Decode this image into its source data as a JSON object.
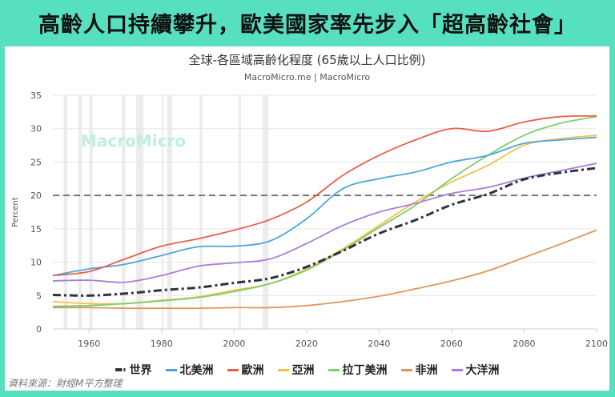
{
  "banner": "高齡人口持續攀升，歐美國家率先步入「超高齡社會」",
  "source": "資料來源：財經M平方整理",
  "watermark": "MacroMicro",
  "chart_data": {
    "type": "line",
    "title": "全球-各區域高齡化程度 (65歲以上人口比例)",
    "subtitle": "MacroMicro.me | MacroMicro",
    "ylabel": "Percent",
    "xlabel": "",
    "xlim": [
      1950,
      2100
    ],
    "ylim": [
      0,
      35
    ],
    "xticks": [
      1960,
      1980,
      2000,
      2020,
      2040,
      2060,
      2080,
      2100
    ],
    "yticks": [
      0,
      5,
      10,
      15,
      20,
      25,
      30,
      35
    ],
    "grid": true,
    "legend": "bottom",
    "reference_line": 20,
    "shaded_periods": [
      [
        1953,
        1954
      ],
      [
        1957,
        1958
      ],
      [
        1960,
        1961
      ],
      [
        1969,
        1970
      ],
      [
        1973,
        1975
      ],
      [
        1980,
        1980.5
      ],
      [
        1981.5,
        1982.9
      ],
      [
        1990.5,
        1991.2
      ],
      [
        2001.2,
        2001.9
      ],
      [
        2007.9,
        2009.5
      ]
    ],
    "x": [
      1950,
      1960,
      1970,
      1980,
      1990,
      2000,
      2010,
      2020,
      2030,
      2040,
      2050,
      2060,
      2070,
      2080,
      2090,
      2100
    ],
    "series": [
      {
        "name": "世界",
        "color": "#2f3140",
        "style": "dashdot",
        "values": [
          5.1,
          5.0,
          5.3,
          5.8,
          6.2,
          6.9,
          7.6,
          9.3,
          11.7,
          14.3,
          16.3,
          18.6,
          20.2,
          22.4,
          23.4,
          24.1
        ]
      },
      {
        "name": "北美洲",
        "color": "#4aa8d8",
        "values": [
          8.0,
          9.0,
          9.7,
          11.0,
          12.3,
          12.4,
          13.2,
          16.5,
          21.0,
          22.5,
          23.5,
          25.0,
          26.0,
          27.8,
          28.3,
          28.7
        ]
      },
      {
        "name": "歐洲",
        "color": "#e8604c",
        "values": [
          8.0,
          8.6,
          10.5,
          12.4,
          13.5,
          14.8,
          16.4,
          19.0,
          23.0,
          26.0,
          28.3,
          30.0,
          29.6,
          31.0,
          31.8,
          31.9
        ]
      },
      {
        "name": "亞洲",
        "color": "#f5c04a",
        "values": [
          4.1,
          3.8,
          3.8,
          4.3,
          4.8,
          5.8,
          6.8,
          9.0,
          12.0,
          15.5,
          19.0,
          22.0,
          24.5,
          27.5,
          28.5,
          29.0
        ]
      },
      {
        "name": "拉丁美洲",
        "color": "#7fcf6a",
        "values": [
          3.4,
          3.5,
          3.8,
          4.2,
          4.7,
          5.6,
          6.8,
          8.8,
          11.8,
          15.2,
          18.5,
          22.5,
          26.0,
          29.0,
          30.8,
          31.8
        ]
      },
      {
        "name": "非洲",
        "color": "#e0955a",
        "values": [
          3.2,
          3.2,
          3.1,
          3.1,
          3.1,
          3.2,
          3.2,
          3.5,
          4.1,
          4.9,
          6.0,
          7.2,
          8.7,
          10.7,
          12.7,
          14.8
        ]
      },
      {
        "name": "大洋洲",
        "color": "#a87fd6",
        "values": [
          7.2,
          7.3,
          7.0,
          8.0,
          9.4,
          9.9,
          10.5,
          12.8,
          15.5,
          17.5,
          18.8,
          20.3,
          21.2,
          22.6,
          23.7,
          24.8
        ]
      }
    ]
  }
}
